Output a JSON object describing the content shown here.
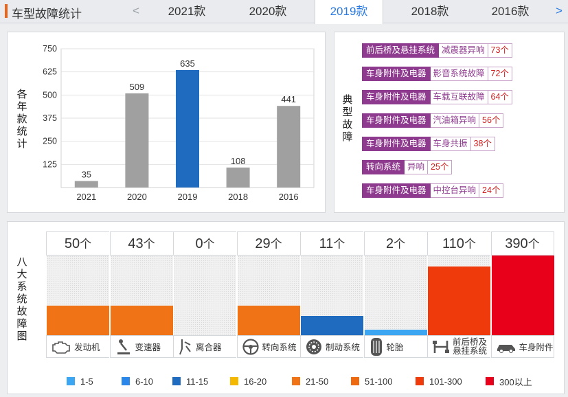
{
  "header": {
    "title": "车型故障统计",
    "prev_arrow": "<",
    "next_arrow": ">",
    "tabs": [
      {
        "label": "2021款",
        "active": false
      },
      {
        "label": "2020款",
        "active": false
      },
      {
        "label": "2019款",
        "active": true
      },
      {
        "label": "2018款",
        "active": false
      },
      {
        "label": "2016款",
        "active": false
      }
    ]
  },
  "yearly_panel": {
    "side_label": "各年款统计"
  },
  "chart_data": {
    "type": "bar",
    "categories": [
      "2021",
      "2020",
      "2019",
      "2018",
      "2016"
    ],
    "values": [
      35,
      509,
      635,
      108,
      441
    ],
    "highlight": "2019",
    "ylim": [
      0,
      750
    ],
    "yticks": [
      125,
      250,
      375,
      500,
      625,
      750
    ],
    "grid": true,
    "colors": {
      "default": "#a0a0a0",
      "highlight": "#1f6bbf"
    }
  },
  "faults_panel": {
    "side_label": "典型故障",
    "items": [
      {
        "category": "前后桥及悬挂系统",
        "description": "减震器异响",
        "count": "73个"
      },
      {
        "category": "车身附件及电器",
        "description": "影音系统故障",
        "count": "72个"
      },
      {
        "category": "车身附件及电器",
        "description": "车载互联故障",
        "count": "64个"
      },
      {
        "category": "车身附件及电器",
        "description": "汽油箱异响",
        "count": "56个"
      },
      {
        "category": "车身附件及电器",
        "description": "车身共振",
        "count": "38个"
      },
      {
        "category": "转向系统",
        "description": "异响",
        "count": "25个"
      },
      {
        "category": "车身附件及电器",
        "description": "中控台异响",
        "count": "24个"
      }
    ]
  },
  "systems_panel": {
    "side_label": "八大系统故障图",
    "unit": "个",
    "systems": [
      {
        "name": "发动机",
        "icon": "engine-icon",
        "count": 50,
        "color": "#f07316",
        "level": 0.37
      },
      {
        "name": "变速器",
        "icon": "gear-shift-icon",
        "count": 43,
        "color": "#f07316",
        "level": 0.37
      },
      {
        "name": "离合器",
        "icon": "clutch-icon",
        "count": 0,
        "color": "#f07316",
        "level": 0
      },
      {
        "name": "转向系统",
        "icon": "steering-wheel-icon",
        "count": 29,
        "color": "#f07316",
        "level": 0.37
      },
      {
        "name": "制动系统",
        "icon": "brake-disc-icon",
        "count": 11,
        "color": "#1f6bbf",
        "level": 0.24
      },
      {
        "name": "轮胎",
        "icon": "tire-icon",
        "count": 2,
        "color": "#3da6f2",
        "level": 0.07
      },
      {
        "name": "前后桥及悬挂系统",
        "name_lines": [
          "前后桥及",
          "悬挂系统"
        ],
        "icon": "axle-icon",
        "count": 110,
        "color": "#ef3a0c",
        "level": 0.86
      },
      {
        "name": "车身附件",
        "icon": "car-body-icon",
        "count": 390,
        "color": "#e8001a",
        "level": 1.0
      }
    ],
    "legend": [
      {
        "label": "1-5",
        "color": "#3da6f2"
      },
      {
        "label": "6-10",
        "color": "#2a86e8"
      },
      {
        "label": "11-15",
        "color": "#1f6bbf"
      },
      {
        "label": "16-20",
        "color": "#f5b800"
      },
      {
        "label": "21-50",
        "color": "#f07316"
      },
      {
        "label": "51-100",
        "color": "#ee6a10"
      },
      {
        "label": "101-300",
        "color": "#ef3a0c"
      },
      {
        "label": "300以上",
        "color": "#e8001a"
      }
    ]
  }
}
